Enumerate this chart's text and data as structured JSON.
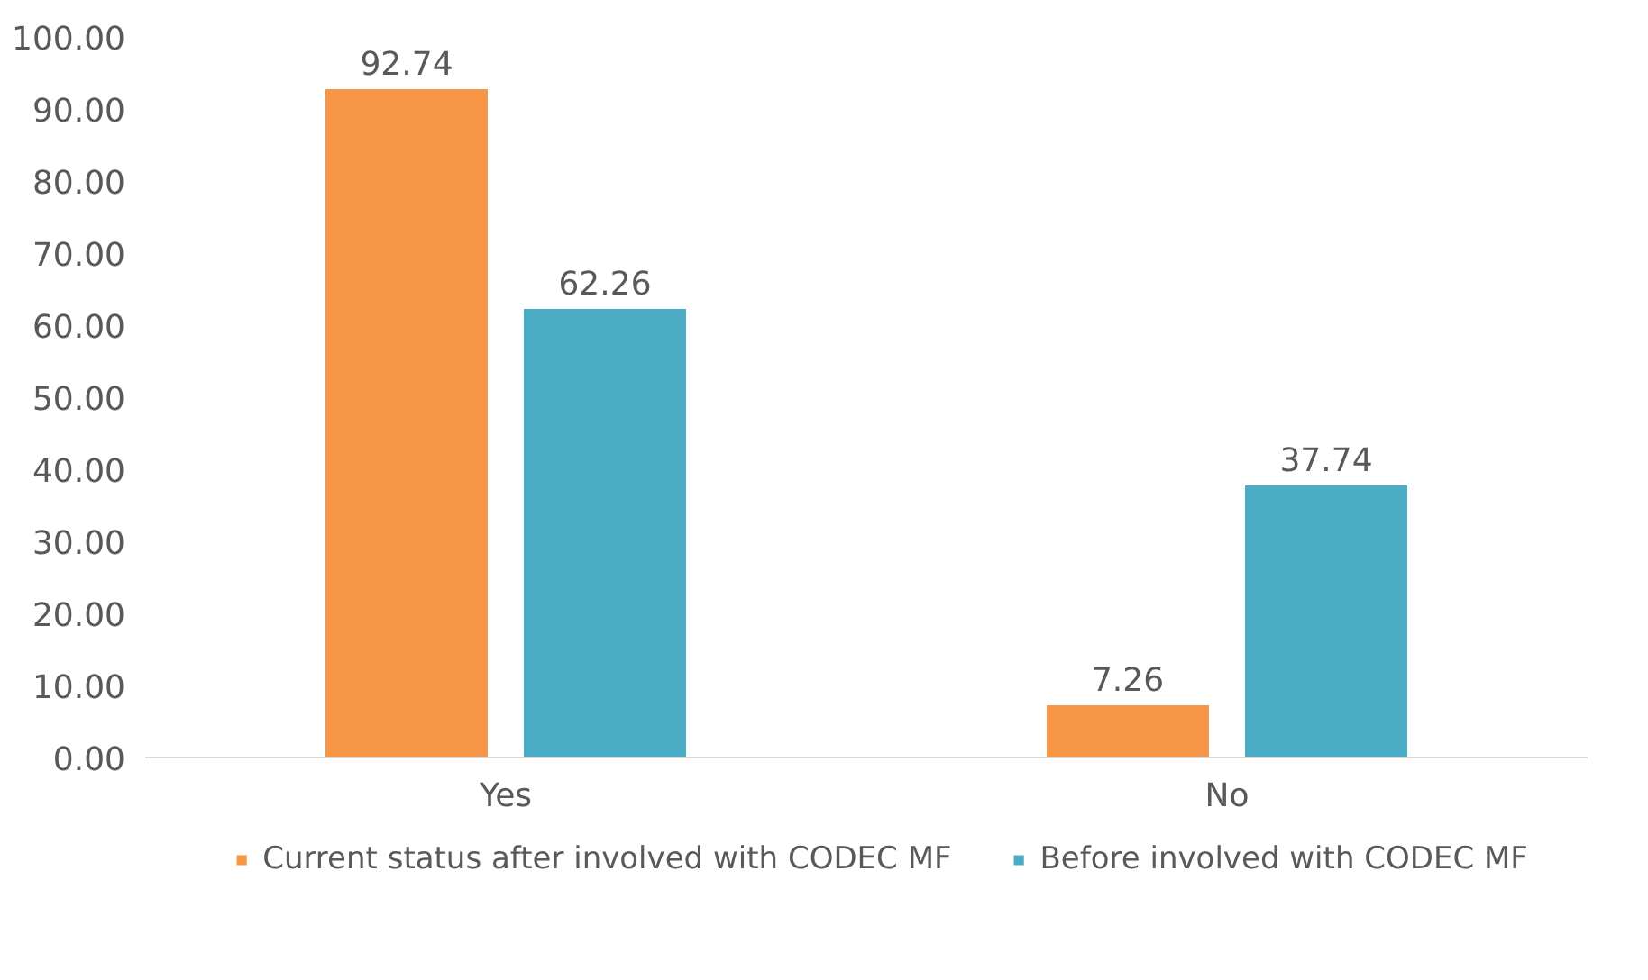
{
  "chart_data": {
    "type": "bar",
    "categories": [
      "Yes",
      "No"
    ],
    "series": [
      {
        "name": "Current status after involved with CODEC MF",
        "color": "#f79646",
        "values": [
          92.74,
          7.26
        ]
      },
      {
        "name": "Before involved with CODEC MF",
        "color": "#4bacc6",
        "values": [
          62.26,
          37.74
        ]
      }
    ],
    "ylim": [
      0,
      100
    ],
    "yticks": [
      {
        "value": 0,
        "label": "0.00"
      },
      {
        "value": 10,
        "label": "10.00"
      },
      {
        "value": 20,
        "label": "20.00"
      },
      {
        "value": 30,
        "label": "30.00"
      },
      {
        "value": 40,
        "label": "40.00"
      },
      {
        "value": 50,
        "label": "50.00"
      },
      {
        "value": 60,
        "label": "60.00"
      },
      {
        "value": 70,
        "label": "70.00"
      },
      {
        "value": 80,
        "label": "80.00"
      },
      {
        "value": 90,
        "label": "90.00"
      },
      {
        "value": 100,
        "label": "100.00"
      }
    ],
    "data_labels": true,
    "grid": false,
    "legend": "bottom"
  }
}
